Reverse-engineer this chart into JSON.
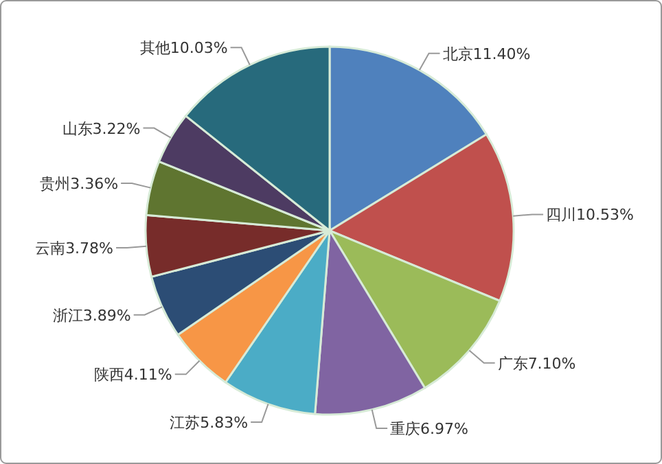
{
  "chart_data": {
    "type": "pie",
    "categories": [
      "北京",
      "四川",
      "广东",
      "重庆",
      "江苏",
      "陕西",
      "浙江",
      "云南",
      "贵州",
      "山东",
      "其他"
    ],
    "values": [
      11.4,
      10.53,
      7.1,
      6.97,
      5.83,
      4.11,
      3.89,
      3.78,
      3.36,
      3.22,
      10.03
    ],
    "value_labels": [
      "11.40%",
      "10.53%",
      "7.10%",
      "6.97%",
      "5.83%",
      "4.11%",
      "3.89%",
      "3.78%",
      "3.36%",
      "3.22%",
      "10.03%"
    ],
    "colors": [
      "#4f81bd",
      "#c0504d",
      "#9bbb59",
      "#8064a2",
      "#4bacc6",
      "#f79646",
      "#2c4d75",
      "#772c2a",
      "#5f7530",
      "#4d3b62",
      "#276a7c"
    ]
  }
}
